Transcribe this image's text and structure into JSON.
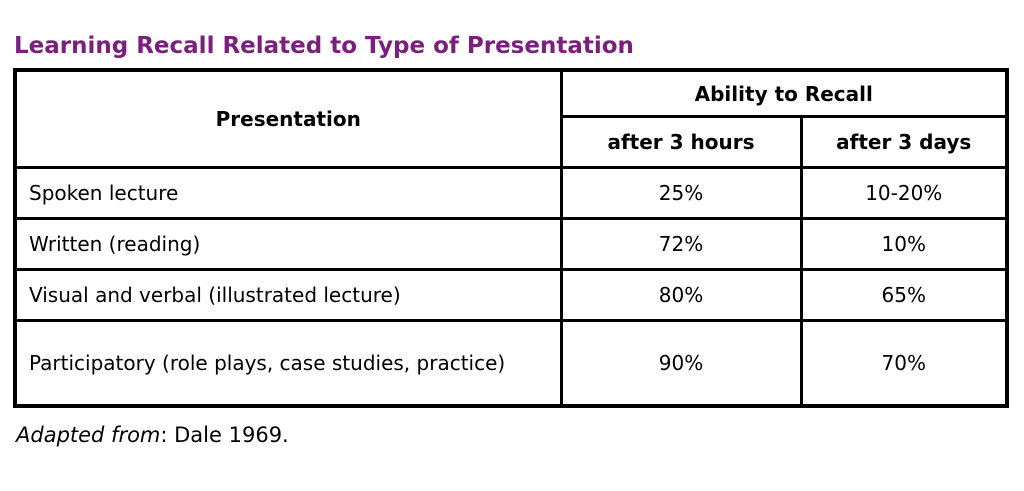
{
  "page": {
    "title": "Learning Recall Related to Type of Presentation",
    "title_color": "#7B1F7E"
  },
  "table": {
    "header": {
      "presentation": "Presentation",
      "ability_group": "Ability to Recall",
      "after_3_hours": "after 3 hours",
      "after_3_days": "after 3 days"
    },
    "rows": [
      {
        "presentation": "Spoken lecture",
        "after_3_hours": "25%",
        "after_3_days": "10-20%"
      },
      {
        "presentation": "Written (reading)",
        "after_3_hours": "72%",
        "after_3_days": "10%"
      },
      {
        "presentation": "Visual and verbal (illustrated lecture)",
        "after_3_hours": "80%",
        "after_3_days": "65%"
      },
      {
        "presentation": "Participatory (role plays, case studies, practice)",
        "after_3_hours": "90%",
        "after_3_days": "70%"
      }
    ]
  },
  "footer": {
    "source_label_italic": "Adapted from",
    "source_rest": ": Dale 1969."
  }
}
